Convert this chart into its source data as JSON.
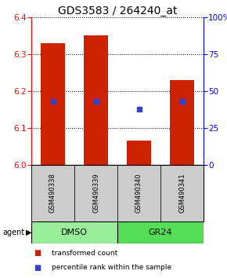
{
  "title": "GDS3583 / 264240_at",
  "samples": [
    "GSM490338",
    "GSM490339",
    "GSM490340",
    "GSM490341"
  ],
  "bar_bottoms": [
    6.0,
    6.0,
    6.0,
    6.0
  ],
  "bar_tops": [
    6.33,
    6.35,
    6.065,
    6.23
  ],
  "blue_pct": [
    43,
    43,
    38,
    43
  ],
  "ylim_left": [
    6.0,
    6.4
  ],
  "ylim_right": [
    0,
    100
  ],
  "yticks_left": [
    6.0,
    6.1,
    6.2,
    6.3,
    6.4
  ],
  "yticks_right": [
    0,
    25,
    50,
    75,
    100
  ],
  "ytick_right_labels": [
    "0",
    "25",
    "50",
    "75",
    "100%"
  ],
  "bar_color": "#cc2200",
  "blue_color": "#3344cc",
  "sample_box_color": "#cccccc",
  "group_labels": [
    "DMSO",
    "GR24"
  ],
  "group_colors": [
    "#99ee99",
    "#55dd55"
  ],
  "group_ranges": [
    [
      0.5,
      2.5
    ],
    [
      2.5,
      4.5
    ]
  ],
  "agent_label": "agent",
  "legend_red": "transformed count",
  "legend_blue": "percentile rank within the sample",
  "bar_width": 0.55,
  "title_fontsize": 10,
  "tick_fontsize": 7.5,
  "sample_fontsize": 6,
  "group_fontsize": 8,
  "legend_fontsize": 6.5,
  "agent_fontsize": 7
}
